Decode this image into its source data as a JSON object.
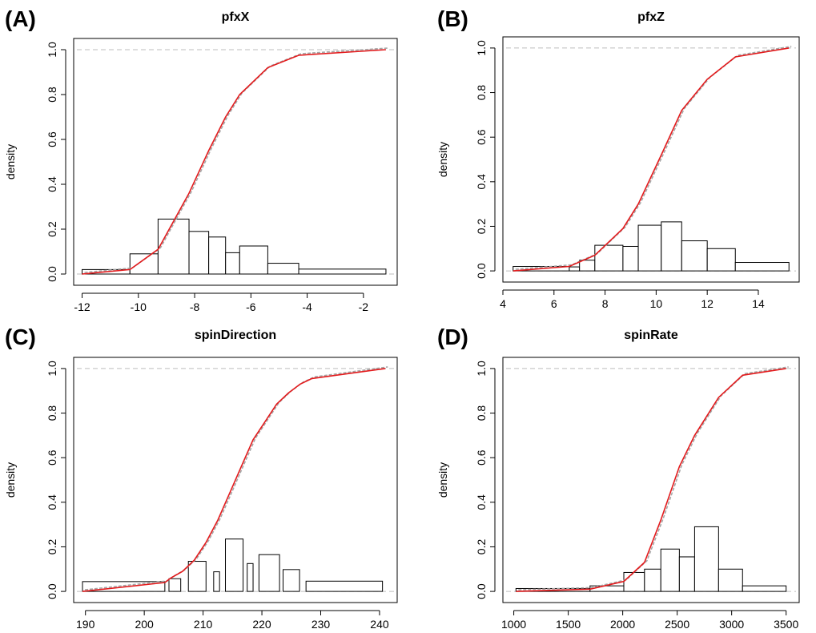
{
  "figure": {
    "colors": {
      "cdf_line": "#e31a1c",
      "cdf_sim": "#a6a6a6",
      "ref_line": "#bdbdbd"
    }
  },
  "chart_data": [
    {
      "panel": "(A)",
      "type": "bar",
      "title": "pfxX",
      "ylabel": "density",
      "xlim": [
        -12.3,
        -0.8
      ],
      "ylim": [
        -0.05,
        1.05
      ],
      "x_ticks": [
        -12,
        -10,
        -8,
        -6,
        -4,
        -2
      ],
      "y_ticks": [
        0.0,
        0.2,
        0.4,
        0.6,
        0.8,
        1.0
      ],
      "y_tick_labels": [
        "0.0",
        "0.2",
        "0.4",
        "0.6",
        "0.8",
        "1.0"
      ],
      "bins": [
        {
          "from": -12.0,
          "to": -10.3,
          "value": 0.02
        },
        {
          "from": -10.3,
          "to": -9.3,
          "value": 0.09
        },
        {
          "from": -9.3,
          "to": -8.2,
          "value": 0.245
        },
        {
          "from": -8.2,
          "to": -7.5,
          "value": 0.19
        },
        {
          "from": -7.5,
          "to": -6.9,
          "value": 0.165
        },
        {
          "from": -6.9,
          "to": -6.4,
          "value": 0.095
        },
        {
          "from": -6.4,
          "to": -5.4,
          "value": 0.125
        },
        {
          "from": -5.4,
          "to": -4.3,
          "value": 0.048
        },
        {
          "from": -4.3,
          "to": -1.2,
          "value": 0.022
        }
      ],
      "cdf": {
        "x": [
          -12.0,
          -10.3,
          -9.3,
          -8.2,
          -7.5,
          -6.9,
          -6.4,
          -5.4,
          -4.3,
          -1.2
        ],
        "y": [
          0.0,
          0.02,
          0.11,
          0.36,
          0.55,
          0.7,
          0.8,
          0.92,
          0.975,
          1.0
        ]
      }
    },
    {
      "panel": "(B)",
      "type": "bar",
      "title": "pfxZ",
      "ylabel": "density",
      "xlim": [
        4.0,
        15.6
      ],
      "ylim": [
        -0.05,
        1.05
      ],
      "x_ticks": [
        4,
        6,
        8,
        10,
        12,
        14
      ],
      "y_ticks": [
        0.0,
        0.2,
        0.4,
        0.6,
        0.8,
        1.0
      ],
      "y_tick_labels": [
        "0.0",
        "0.2",
        "0.4",
        "0.6",
        "0.8",
        "1.0"
      ],
      "bins": [
        {
          "from": 4.4,
          "to": 6.6,
          "value": 0.02
        },
        {
          "from": 6.6,
          "to": 7.0,
          "value": 0.018
        },
        {
          "from": 7.0,
          "to": 7.6,
          "value": 0.048
        },
        {
          "from": 7.6,
          "to": 8.7,
          "value": 0.115
        },
        {
          "from": 8.7,
          "to": 9.3,
          "value": 0.11
        },
        {
          "from": 9.3,
          "to": 10.2,
          "value": 0.205
        },
        {
          "from": 10.2,
          "to": 11.0,
          "value": 0.22
        },
        {
          "from": 11.0,
          "to": 12.0,
          "value": 0.135
        },
        {
          "from": 12.0,
          "to": 13.1,
          "value": 0.1
        },
        {
          "from": 13.1,
          "to": 15.2,
          "value": 0.038
        }
      ],
      "cdf": {
        "x": [
          4.4,
          6.6,
          7.6,
          8.7,
          9.3,
          10.2,
          11.0,
          12.0,
          13.1,
          15.2
        ],
        "y": [
          0.0,
          0.02,
          0.07,
          0.19,
          0.3,
          0.52,
          0.72,
          0.86,
          0.96,
          1.0
        ]
      }
    },
    {
      "panel": "(C)",
      "type": "bar",
      "title": "spinDirection",
      "ylabel": "density",
      "xlim": [
        188,
        243
      ],
      "ylim": [
        -0.05,
        1.05
      ],
      "x_ticks": [
        190,
        200,
        210,
        220,
        230,
        240
      ],
      "y_ticks": [
        0.0,
        0.2,
        0.4,
        0.6,
        0.8,
        1.0
      ],
      "y_tick_labels": [
        "0.0",
        "0.2",
        "0.4",
        "0.6",
        "0.8",
        "1.0"
      ],
      "bins": [
        {
          "from": 189.5,
          "to": 203.5,
          "value": 0.044
        },
        {
          "from": 204.2,
          "to": 206.2,
          "value": 0.057
        },
        {
          "from": 207.5,
          "to": 210.5,
          "value": 0.135
        },
        {
          "from": 211.8,
          "to": 212.8,
          "value": 0.088
        },
        {
          "from": 213.8,
          "to": 216.8,
          "value": 0.235
        },
        {
          "from": 217.5,
          "to": 218.5,
          "value": 0.125
        },
        {
          "from": 219.5,
          "to": 223.0,
          "value": 0.165
        },
        {
          "from": 223.6,
          "to": 226.4,
          "value": 0.098
        },
        {
          "from": 227.5,
          "to": 240.5,
          "value": 0.046
        }
      ],
      "cdf": {
        "x": [
          189.5,
          203.5,
          204.5,
          206.5,
          208.5,
          210.5,
          212.5,
          214.5,
          216.5,
          218.5,
          220.5,
          222.5,
          224.5,
          226.5,
          228.5,
          241
        ],
        "y": [
          0.0,
          0.04,
          0.06,
          0.09,
          0.14,
          0.22,
          0.32,
          0.44,
          0.56,
          0.68,
          0.76,
          0.84,
          0.89,
          0.93,
          0.955,
          1.0
        ]
      }
    },
    {
      "panel": "(D)",
      "type": "bar",
      "title": "spinRate",
      "ylabel": "density",
      "xlim": [
        900,
        3620
      ],
      "ylim": [
        -0.05,
        1.05
      ],
      "x_ticks": [
        1000,
        1500,
        2000,
        2500,
        3000,
        3500
      ],
      "y_ticks": [
        0.0,
        0.2,
        0.4,
        0.6,
        0.8,
        1.0
      ],
      "y_tick_labels": [
        "0.0",
        "0.2",
        "0.4",
        "0.6",
        "0.8",
        "1.0"
      ],
      "bins": [
        {
          "from": 1020,
          "to": 1700,
          "value": 0.013
        },
        {
          "from": 1700,
          "to": 2010,
          "value": 0.025
        },
        {
          "from": 2010,
          "to": 2200,
          "value": 0.085
        },
        {
          "from": 2200,
          "to": 2350,
          "value": 0.1
        },
        {
          "from": 2350,
          "to": 2520,
          "value": 0.19
        },
        {
          "from": 2520,
          "to": 2660,
          "value": 0.155
        },
        {
          "from": 2660,
          "to": 2880,
          "value": 0.29
        },
        {
          "from": 2880,
          "to": 3100,
          "value": 0.1
        },
        {
          "from": 3100,
          "to": 3500,
          "value": 0.025
        }
      ],
      "cdf": {
        "x": [
          1020,
          1700,
          2010,
          2200,
          2350,
          2520,
          2660,
          2880,
          3100,
          3500
        ],
        "y": [
          0.0,
          0.01,
          0.045,
          0.13,
          0.32,
          0.56,
          0.7,
          0.87,
          0.97,
          1.0
        ]
      }
    }
  ]
}
